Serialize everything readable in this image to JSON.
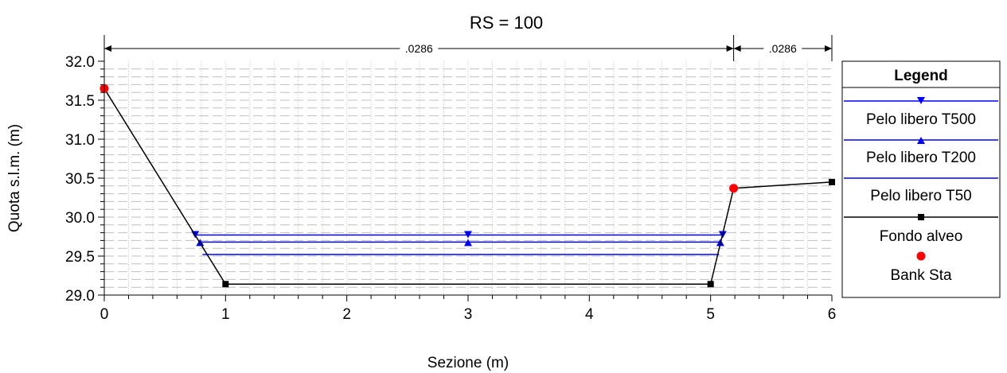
{
  "chart_data": {
    "type": "line",
    "title": "RS = 100",
    "xlabel": "Sezione (m)",
    "ylabel": "Quota s.l.m. (m)",
    "xlim": [
      0,
      6
    ],
    "ylim": [
      29.0,
      32.0
    ],
    "x_ticks": [
      "0",
      "1",
      "2",
      "3",
      "4",
      "5",
      "6"
    ],
    "y_ticks": [
      "29.0",
      "29.5",
      "30.0",
      "30.5",
      "31.0",
      "31.5",
      "32.0"
    ],
    "grid": true,
    "legend_position": "right",
    "legend_title": "Legend",
    "manning": [
      {
        "label": ".0286",
        "from": 0,
        "to": 5.19
      },
      {
        "label": ".0286",
        "from": 5.19,
        "to": 6
      }
    ],
    "series": [
      {
        "name": "Pelo libero T500",
        "color": "#0000FF",
        "marker": "triangle-down",
        "y": 29.77,
        "x": [
          0.75,
          5.1
        ],
        "marker_x": [
          0.75,
          3,
          5.1
        ]
      },
      {
        "name": "Pelo libero T200",
        "color": "#0000FF",
        "marker": "triangle-up",
        "y": 29.68,
        "x": [
          0.79,
          5.08
        ],
        "marker_x": [
          0.79,
          3,
          5.08
        ]
      },
      {
        "name": "Pelo libero T50",
        "color": "#0000FF",
        "marker": "none",
        "y": 29.52,
        "x": [
          0.81,
          5.07
        ],
        "marker_x": []
      },
      {
        "name": "Fondo alveo",
        "color": "#000000",
        "marker": "square",
        "x": [
          0,
          1,
          5,
          5.19,
          6
        ],
        "y": [
          31.65,
          29.14,
          29.14,
          30.37,
          30.45
        ],
        "marker_x": [
          1,
          5,
          6
        ],
        "marker_y": [
          29.14,
          29.14,
          30.45
        ]
      },
      {
        "name": "Bank Sta",
        "color": "#FF0000",
        "marker": "circle",
        "points": [
          {
            "x": 0,
            "y": 31.65
          },
          {
            "x": 5.19,
            "y": 30.37
          }
        ]
      }
    ]
  }
}
